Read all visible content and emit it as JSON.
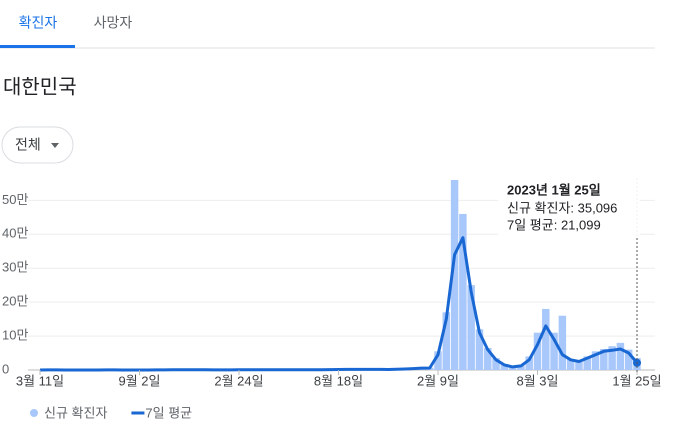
{
  "tabs": [
    "확진자",
    "사망자"
  ],
  "region": "대한민국",
  "filter": "전체",
  "chart_data": {
    "type": "combo",
    "categories": [
      "3월 11일",
      null,
      null,
      null,
      null,
      null,
      null,
      null,
      null,
      null,
      null,
      null,
      "9월 2일",
      null,
      null,
      null,
      null,
      null,
      null,
      null,
      null,
      null,
      null,
      null,
      "2월 24일",
      null,
      null,
      null,
      null,
      null,
      null,
      null,
      null,
      null,
      null,
      null,
      "8월 18일",
      null,
      null,
      null,
      null,
      null,
      null,
      null,
      null,
      null,
      null,
      null,
      "2월 9일",
      null,
      null,
      null,
      null,
      null,
      null,
      null,
      null,
      null,
      null,
      null,
      "8월 3일",
      null,
      null,
      null,
      null,
      null,
      null,
      null,
      null,
      null,
      null,
      null,
      "1월 25일"
    ],
    "series": [
      {
        "name": "신규 확진자",
        "type": "bar",
        "color": "#a8c7fa",
        "values": [
          100,
          300,
          100,
          50,
          40,
          30,
          60,
          50,
          200,
          250,
          100,
          90,
          120,
          70,
          200,
          450,
          800,
          1000,
          700,
          550,
          430,
          380,
          400,
          450,
          460,
          430,
          500,
          480,
          600,
          620,
          640,
          560,
          580,
          620,
          800,
          1200,
          1600,
          1900,
          1600,
          1900,
          2000,
          1600,
          1700,
          2500,
          3200,
          4500,
          6000,
          7000,
          55000,
          170000,
          560000,
          460000,
          250000,
          120000,
          65000,
          35000,
          18000,
          10000,
          14000,
          40000,
          110000,
          180000,
          110000,
          160000,
          32000,
          28000,
          40000,
          55000,
          62000,
          70000,
          80000,
          60000,
          35096
        ]
      },
      {
        "name": "7일 평균",
        "type": "line",
        "color": "#1967d2",
        "values": [
          60,
          400,
          150,
          60,
          40,
          40,
          50,
          50,
          150,
          280,
          120,
          100,
          110,
          80,
          150,
          400,
          700,
          1000,
          850,
          600,
          450,
          400,
          380,
          420,
          450,
          450,
          470,
          500,
          550,
          600,
          650,
          600,
          550,
          600,
          700,
          1100,
          1500,
          1800,
          1700,
          1800,
          1900,
          1700,
          1600,
          2200,
          3000,
          4000,
          5500,
          6000,
          45000,
          150000,
          340000,
          390000,
          230000,
          110000,
          60000,
          30000,
          15000,
          9000,
          12000,
          30000,
          75000,
          130000,
          90000,
          45000,
          30000,
          25000,
          35000,
          45000,
          55000,
          58000,
          62000,
          50000,
          21099
        ]
      }
    ],
    "ylim": [
      0,
      560000
    ],
    "yticks": [
      0,
      {
        "value": 100000,
        "label": "10만"
      },
      {
        "value": 200000,
        "label": "20만"
      },
      {
        "value": 300000,
        "label": "30만"
      },
      {
        "value": 400000,
        "label": "40만"
      },
      {
        "value": 500000,
        "label": "50만"
      }
    ],
    "grid": true,
    "tooltip": {
      "title": "2023년 1월 25일",
      "lines": [
        "신규 확진자: 35,096",
        "7일 평균: 21,099"
      ]
    }
  }
}
